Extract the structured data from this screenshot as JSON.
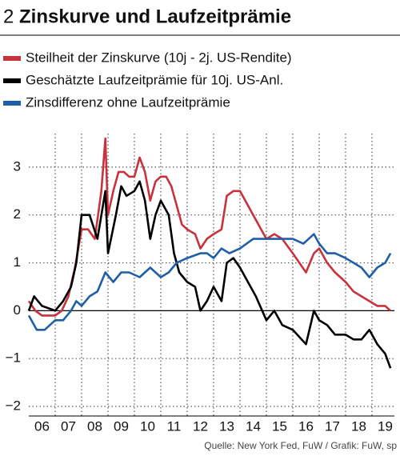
{
  "chart_data": {
    "type": "line",
    "chart_number": "2",
    "title": "Zinskurve und Laufzeitprämie",
    "source": "Quelle:  New York Fed, FuW / Grafik: FuW, sp",
    "xlim": [
      2006,
      2019.85
    ],
    "ylim": [
      -2.2,
      3.7
    ],
    "yticks": [
      {
        "value": -2,
        "label": "−2"
      },
      {
        "value": -1,
        "label": "−1"
      },
      0,
      1,
      2,
      3
    ],
    "xticks": [
      {
        "value": 2006.5,
        "label": "06"
      },
      {
        "value": 2007.5,
        "label": "07"
      },
      {
        "value": 2008.5,
        "label": "08"
      },
      {
        "value": 2009.5,
        "label": "09"
      },
      {
        "value": 2010.5,
        "label": "10"
      },
      {
        "value": 2011.5,
        "label": "11"
      },
      {
        "value": 2012.5,
        "label": "12"
      },
      {
        "value": 2013.5,
        "label": "13"
      },
      {
        "value": 2014.5,
        "label": "14"
      },
      {
        "value": 2015.5,
        "label": "15"
      },
      {
        "value": 2016.5,
        "label": "16"
      },
      {
        "value": 2017.5,
        "label": "17"
      },
      {
        "value": 2018.5,
        "label": "18"
      },
      {
        "value": 2019.5,
        "label": "19"
      }
    ],
    "x_gridlines": [
      2007,
      2008,
      2009,
      2010,
      2011,
      2012,
      2013,
      2014,
      2015,
      2016,
      2017,
      2018,
      2019
    ],
    "grid": true,
    "series": [
      {
        "name": "Steilheit der Zinskurve (10j - 2j. US-Rendite)",
        "color": "#c8323c",
        "x": [
          2006.0,
          2006.25,
          2006.5,
          2006.75,
          2007.0,
          2007.25,
          2007.5,
          2007.75,
          2008.0,
          2008.25,
          2008.5,
          2008.75,
          2008.9,
          2009.0,
          2009.2,
          2009.4,
          2009.6,
          2009.8,
          2010.0,
          2010.2,
          2010.4,
          2010.6,
          2010.8,
          2011.0,
          2011.2,
          2011.4,
          2011.6,
          2011.8,
          2012.0,
          2012.3,
          2012.5,
          2012.75,
          2013.0,
          2013.3,
          2013.5,
          2013.75,
          2014.0,
          2014.3,
          2014.6,
          2015.0,
          2015.3,
          2015.6,
          2016.0,
          2016.5,
          2016.8,
          2017.0,
          2017.3,
          2017.6,
          2018.0,
          2018.3,
          2018.6,
          2018.9,
          2019.2,
          2019.5,
          2019.7
        ],
        "values": [
          0.2,
          0.0,
          -0.1,
          -0.1,
          -0.1,
          0.0,
          0.3,
          0.9,
          1.7,
          1.7,
          1.5,
          2.5,
          3.6,
          2.0,
          2.5,
          2.9,
          2.9,
          2.8,
          2.8,
          3.2,
          2.9,
          2.3,
          2.7,
          2.8,
          2.8,
          2.6,
          2.2,
          1.8,
          1.7,
          1.6,
          1.3,
          1.5,
          1.6,
          1.7,
          2.4,
          2.5,
          2.5,
          2.2,
          1.9,
          1.5,
          1.6,
          1.5,
          1.2,
          0.8,
          1.2,
          1.3,
          1.0,
          0.8,
          0.6,
          0.4,
          0.3,
          0.2,
          0.1,
          0.1,
          0.0
        ]
      },
      {
        "name": "Geschätzte Laufzeitprämie für 10j. US-Anl.",
        "color": "#000000",
        "x": [
          2006.0,
          2006.2,
          2006.5,
          2007.0,
          2007.3,
          2007.6,
          2007.8,
          2008.0,
          2008.3,
          2008.6,
          2008.9,
          2009.0,
          2009.3,
          2009.5,
          2009.7,
          2010.0,
          2010.2,
          2010.4,
          2010.6,
          2010.8,
          2011.0,
          2011.3,
          2011.5,
          2011.7,
          2012.0,
          2012.3,
          2012.5,
          2012.75,
          2013.0,
          2013.3,
          2013.5,
          2013.75,
          2014.0,
          2014.3,
          2014.6,
          2015.0,
          2015.3,
          2015.6,
          2016.0,
          2016.5,
          2016.8,
          2017.0,
          2017.3,
          2017.6,
          2018.0,
          2018.3,
          2018.6,
          2018.9,
          2019.2,
          2019.5,
          2019.7
        ],
        "values": [
          0.0,
          0.3,
          0.1,
          0.0,
          0.2,
          0.5,
          1.0,
          2.0,
          2.0,
          1.5,
          2.5,
          1.2,
          2.0,
          2.6,
          2.4,
          2.5,
          2.7,
          2.3,
          1.5,
          2.0,
          2.3,
          2.0,
          1.2,
          0.8,
          0.6,
          0.5,
          0.0,
          0.2,
          0.5,
          0.2,
          1.0,
          1.1,
          0.9,
          0.6,
          0.3,
          -0.2,
          0.0,
          -0.3,
          -0.4,
          -0.7,
          0.0,
          -0.2,
          -0.3,
          -0.5,
          -0.5,
          -0.6,
          -0.6,
          -0.4,
          -0.7,
          -0.9,
          -1.2
        ]
      },
      {
        "name": "Zinsdifferenz ohne Laufzeitprämie",
        "color": "#1f5fa8",
        "x": [
          2006.0,
          2006.3,
          2006.6,
          2007.0,
          2007.3,
          2007.6,
          2007.8,
          2008.0,
          2008.3,
          2008.6,
          2008.9,
          2009.2,
          2009.5,
          2009.8,
          2010.2,
          2010.6,
          2011.0,
          2011.3,
          2011.6,
          2012.0,
          2012.5,
          2012.75,
          2013.0,
          2013.3,
          2013.6,
          2014.0,
          2014.5,
          2015.0,
          2015.3,
          2015.6,
          2016.0,
          2016.4,
          2016.8,
          2017.0,
          2017.3,
          2017.6,
          2018.0,
          2018.3,
          2018.6,
          2018.9,
          2019.2,
          2019.5,
          2019.7
        ],
        "values": [
          -0.1,
          -0.4,
          -0.4,
          -0.2,
          -0.2,
          0.0,
          0.2,
          0.1,
          0.3,
          0.4,
          0.8,
          0.6,
          0.8,
          0.8,
          0.7,
          0.9,
          0.7,
          0.8,
          1.0,
          1.1,
          1.2,
          1.2,
          1.1,
          1.3,
          1.2,
          1.3,
          1.5,
          1.5,
          1.5,
          1.5,
          1.5,
          1.4,
          1.6,
          1.4,
          1.2,
          1.2,
          1.1,
          1.0,
          0.9,
          0.7,
          0.9,
          1.0,
          1.2
        ]
      }
    ]
  }
}
